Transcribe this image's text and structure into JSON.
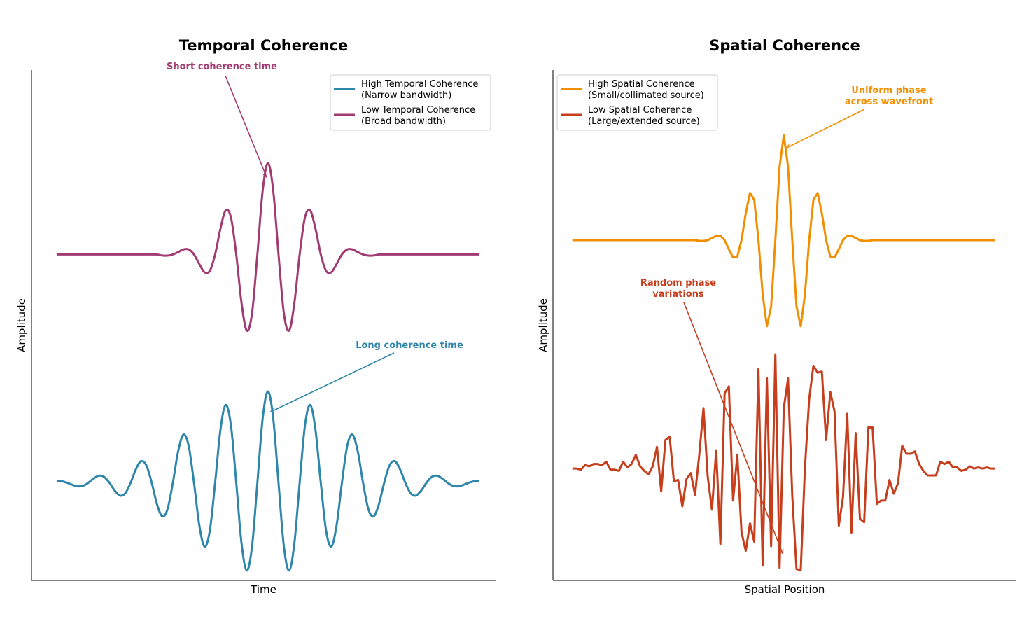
{
  "chart_data": [
    {
      "type": "line",
      "title": "Temporal Coherence",
      "xlabel": "Time",
      "ylabel": "Amplitude",
      "smooth": true,
      "xlim": [
        -11.19,
        10.77
      ],
      "ylim": [
        -1.07,
        4.52
      ],
      "legend": "upper right",
      "x": [
        -10,
        -9.75,
        -9.5,
        -9.25,
        -9,
        -8.75,
        -8.5,
        -8.25,
        -8,
        -7.75,
        -7.5,
        -7.25,
        -7,
        -6.75,
        -6.5,
        -6.25,
        -6,
        -5.75,
        -5.5,
        -5.25,
        -5,
        -4.75,
        -4.5,
        -4.25,
        -4,
        -3.75,
        -3.5,
        -3.25,
        -3,
        -2.75,
        -2.5,
        -2.25,
        -2,
        -1.75,
        -1.5,
        -1.25,
        -1,
        -0.75,
        -0.5,
        -0.25,
        0,
        0.25,
        0.5,
        0.75,
        1,
        1.25,
        1.5,
        1.75,
        2,
        2.25,
        2.5,
        2.75,
        3,
        3.25,
        3.5,
        3.75,
        4,
        4.25,
        4.5,
        4.75,
        5,
        5.25,
        5.5,
        5.75,
        6,
        6.25,
        6.5,
        6.75,
        7,
        7.25,
        7.5,
        7.75,
        8,
        8.25,
        8.5,
        8.75,
        9,
        9.25,
        9.5,
        9.75,
        10
      ],
      "series": [
        {
          "name": "High Temporal Coherence\n(Narrow bandwidth)",
          "color": "#2e86ab",
          "values": [
            0.018,
            0.016,
            0,
            -0.023,
            -0.039,
            -0.033,
            0,
            0.047,
            0.077,
            0.064,
            0,
            -0.086,
            -0.141,
            -0.115,
            0,
            0.148,
            0.237,
            0.188,
            0,
            -0.235,
            -0.368,
            -0.287,
            0,
            0.344,
            0.527,
            0.403,
            0,
            -0.463,
            -0.698,
            -0.523,
            0,
            0.578,
            0.852,
            0.626,
            0,
            -0.664,
            -0.961,
            -0.691,
            0,
            0.705,
            1,
            0.705,
            0,
            -0.691,
            -0.961,
            -0.664,
            0,
            0.626,
            0.852,
            0.578,
            0,
            -0.523,
            -0.698,
            -0.463,
            0,
            0.403,
            0.527,
            0.344,
            0,
            -0.287,
            -0.368,
            -0.235,
            0,
            0.188,
            0.237,
            0.148,
            0,
            -0.115,
            -0.141,
            -0.086,
            0,
            0.064,
            0.077,
            0.047,
            0,
            -0.033,
            -0.039,
            -0.023,
            0,
            0.016,
            0.018
          ]
        },
        {
          "name": "Low Temporal Coherence\n(Broad bandwidth)",
          "color": "#a23b72",
          "values": [
            2.5,
            2.5,
            2.5,
            2.5,
            2.5,
            2.5,
            2.5,
            2.5,
            2.5,
            2.5,
            2.5,
            2.5,
            2.5,
            2.5,
            2.5,
            2.5,
            2.5,
            2.5,
            2.5,
            2.5,
            2.489,
            2.488,
            2.5,
            2.526,
            2.555,
            2.555,
            2.5,
            2.396,
            2.305,
            2.321,
            2.5,
            2.781,
            2.983,
            2.905,
            2.5,
            1.968,
            1.666,
            1.862,
            2.5,
            3.199,
            3.5,
            3.199,
            2.5,
            1.862,
            1.666,
            1.968,
            2.5,
            2.905,
            2.983,
            2.781,
            2.5,
            2.321,
            2.305,
            2.396,
            2.5,
            2.555,
            2.555,
            2.526,
            2.5,
            2.488,
            2.489,
            2.5,
            2.5,
            2.5,
            2.5,
            2.5,
            2.5,
            2.5,
            2.5,
            2.5,
            2.5,
            2.5,
            2.5,
            2.5,
            2.5,
            2.5,
            2.5,
            2.5,
            2.5,
            2.5,
            2.5
          ]
        }
      ],
      "annotations": [
        {
          "text": "Short coherence time",
          "color": "#a23b72"
        },
        {
          "text": "Long coherence time",
          "color": "#2e86ab"
        }
      ]
    },
    {
      "type": "line",
      "title": "Spatial Coherence",
      "xlabel": "Spatial Position",
      "ylabel": "Amplitude",
      "smooth": false,
      "xlim": [
        -5.46,
        5.5
      ],
      "ylim": [
        -0.98,
        3.49
      ],
      "legend": "upper left",
      "x": [
        -5,
        -4.9,
        -4.8,
        -4.7,
        -4.6,
        -4.5,
        -4.4,
        -4.3,
        -4.2,
        -4.1,
        -4,
        -3.9,
        -3.8,
        -3.7,
        -3.6,
        -3.5,
        -3.4,
        -3.3,
        -3.2,
        -3.1,
        -3,
        -2.9,
        -2.8,
        -2.7,
        -2.6,
        -2.5,
        -2.4,
        -2.3,
        -2.2,
        -2.1,
        -2,
        -1.9,
        -1.8,
        -1.7,
        -1.6,
        -1.5,
        -1.4,
        -1.3,
        -1.2,
        -1.1,
        -1,
        -0.9,
        -0.8,
        -0.7,
        -0.6,
        -0.5,
        -0.4,
        -0.3,
        -0.2,
        -0.1,
        0,
        0.1,
        0.2,
        0.3,
        0.4,
        0.5,
        0.6,
        0.7,
        0.8,
        0.9,
        1,
        1.1,
        1.2,
        1.3,
        1.4,
        1.5,
        1.6,
        1.7,
        1.8,
        1.9,
        2,
        2.1,
        2.2,
        2.3,
        2.4,
        2.5,
        2.6,
        2.7,
        2.8,
        2.9,
        3,
        3.1,
        3.2,
        3.3,
        3.4,
        3.5,
        3.6,
        3.7,
        3.8,
        3.9,
        4,
        4.1,
        4.2,
        4.3,
        4.4,
        4.5,
        4.6,
        4.7,
        4.8,
        4.9,
        5
      ],
      "series": [
        {
          "name": "High Spatial Coherence\n(Small/collimated source)",
          "color": "#f18f01",
          "values": [
            2,
            2,
            2,
            2,
            2,
            2,
            2,
            2,
            2,
            2,
            2,
            2,
            2,
            2,
            2,
            2,
            2,
            2,
            2,
            2,
            2,
            2,
            2,
            2,
            2,
            2,
            2,
            2,
            2,
            2,
            1.994,
            1.993,
            2,
            2.018,
            2.038,
            2.039,
            2,
            1.921,
            1.848,
            1.857,
            2,
            2.236,
            2.413,
            2.353,
            2,
            1.524,
            1.247,
            1.419,
            2,
            2.643,
            2.92,
            2.643,
            2,
            1.419,
            1.247,
            1.524,
            2,
            2.353,
            2.413,
            2.236,
            2,
            1.857,
            1.848,
            1.921,
            2,
            2.039,
            2.038,
            2.018,
            2,
            1.993,
            1.994,
            2,
            2,
            2,
            2,
            2,
            2,
            2,
            2,
            2,
            2,
            2,
            2,
            2,
            2,
            2,
            2,
            2,
            2,
            2,
            2,
            2,
            2,
            2,
            2,
            2,
            2,
            2,
            2,
            2,
            2
          ]
        },
        {
          "name": "Low Spatial Coherence\n(Large/extended source)",
          "color": "#c73e1d",
          "values": [
            0,
            0,
            -0.01,
            0.03,
            0.02,
            0.04,
            0.04,
            0.03,
            0.06,
            -0.01,
            -0.01,
            -0.02,
            0.06,
            0.01,
            0.04,
            0.12,
            0.02,
            -0.02,
            -0.05,
            0.02,
            0.19,
            -0.2,
            0.25,
            0.28,
            -0.11,
            -0.1,
            -0.33,
            -0.09,
            -0.04,
            -0.23,
            0.12,
            0.53,
            -0.07,
            -0.36,
            0.16,
            -0.66,
            0.66,
            0.72,
            -0.28,
            0.12,
            -0.56,
            -0.72,
            -0.48,
            -0.64,
            0.87,
            -0.85,
            0.79,
            -0.68,
            1.0,
            -0.87,
            0.53,
            0.79,
            -0.24,
            -0.88,
            -0.89,
            0.01,
            0.61,
            0.9,
            0.84,
            0.85,
            0.25,
            0.67,
            0.5,
            -0.5,
            -0.25,
            0.48,
            -0.56,
            0.31,
            -0.44,
            -0.47,
            0.36,
            0.36,
            -0.31,
            -0.28,
            -0.28,
            -0.1,
            -0.22,
            -0.13,
            0.2,
            0.13,
            0.13,
            0.15,
            0.04,
            -0.02,
            -0.06,
            -0.06,
            -0.06,
            0.06,
            0.04,
            0.06,
            0.01,
            0.01,
            -0.02,
            -0.01,
            0.02,
            0,
            0.01,
            0,
            0.01,
            0,
            0
          ]
        }
      ],
      "annotations": [
        {
          "text": "Uniform phase\nacross wavefront",
          "color": "#f18f01"
        },
        {
          "text": "Random phase\nvariations",
          "color": "#c73e1d"
        }
      ]
    }
  ]
}
